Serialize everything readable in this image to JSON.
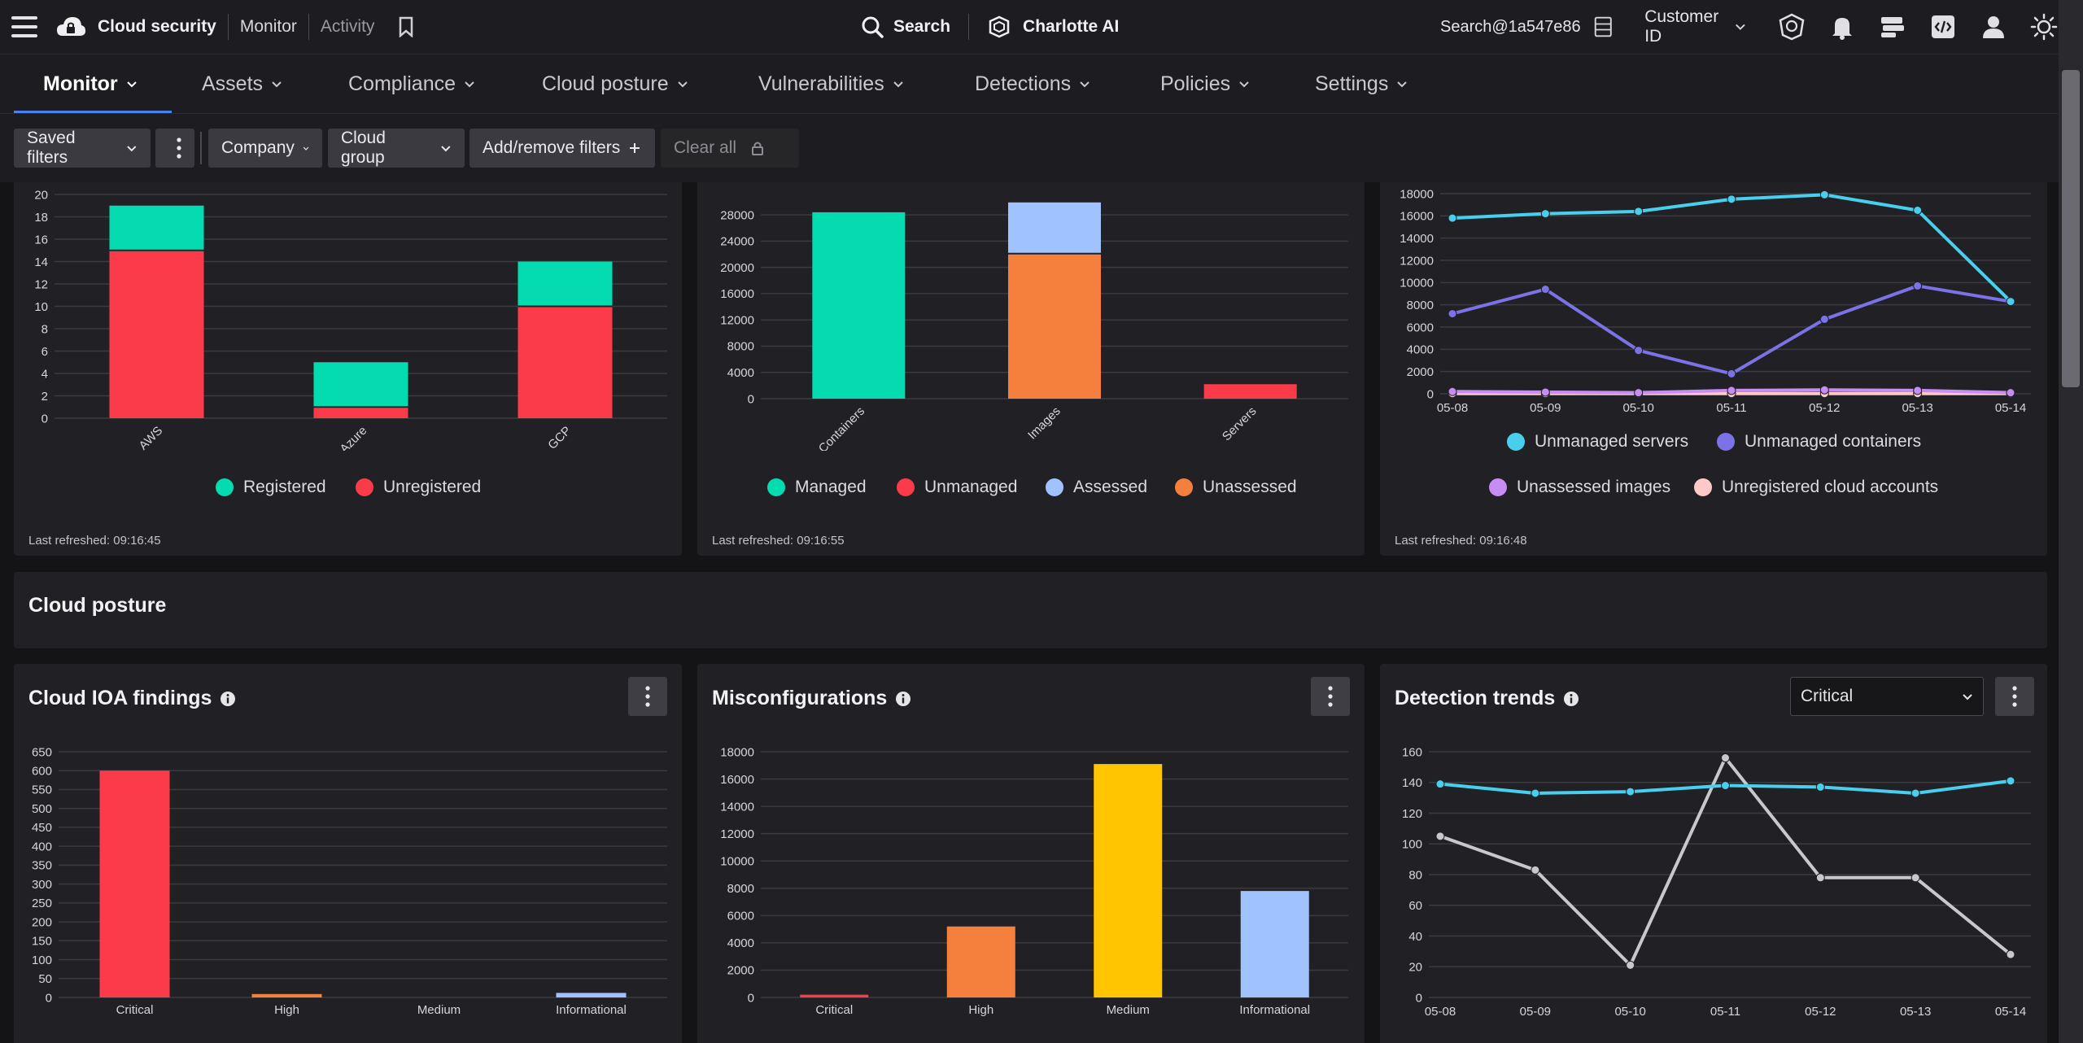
{
  "topbar": {
    "brand": "Cloud security",
    "crumb_monitor": "Monitor",
    "crumb_activity": "Activity",
    "search_label": "Search",
    "ai_label": "Charlotte AI",
    "user": "Search@1a547e86",
    "customer_id": "Customer ID"
  },
  "nav": {
    "items": [
      "Monitor",
      "Assets",
      "Compliance",
      "Cloud posture",
      "Vulnerabilities",
      "Detections",
      "Policies",
      "Settings"
    ],
    "active": "Monitor"
  },
  "filters": {
    "saved_filters": "Saved filters",
    "company": "Company",
    "cloud_group": "Cloud group",
    "add_remove": "Add/remove filters",
    "clear_all": "Clear all"
  },
  "section": {
    "cloud_posture": "Cloud posture"
  },
  "panels": {
    "accounts": {
      "refreshed": "Last refreshed: 09:16:45"
    },
    "assets": {
      "refreshed": "Last refreshed: 09:16:55"
    },
    "trend": {
      "refreshed": "Last refreshed: 09:16:48"
    },
    "ioa": {
      "title": "Cloud IOA findings"
    },
    "misconfig": {
      "title": "Misconfigurations"
    },
    "detection": {
      "title": "Detection trends",
      "filter_value": "Critical"
    }
  },
  "colors": {
    "teal": "#05dbb0",
    "red": "#fb3b4a",
    "blue": "#a0c2ff",
    "orange": "#f5803e",
    "yellow": "#ffc500",
    "cyan": "#49cfee",
    "purple": "#7c72e8",
    "violet": "#c88cf5",
    "pink": "#ffc9c9",
    "gray": "#c8c8cc"
  },
  "chart_data": [
    {
      "id": "accounts",
      "type": "bar",
      "stacked": true,
      "categories": [
        "AWS",
        "Azure",
        "GCP"
      ],
      "series": [
        {
          "name": "Unregistered",
          "color": "#fb3b4a",
          "values": [
            15,
            1,
            10
          ]
        },
        {
          "name": "Registered",
          "color": "#05dbb0",
          "values": [
            4,
            4,
            4
          ]
        }
      ],
      "yticks": [
        0,
        2,
        4,
        6,
        8,
        10,
        12,
        14,
        16,
        18,
        20
      ],
      "ylim": [
        0,
        20
      ]
    },
    {
      "id": "assets",
      "type": "bar",
      "stacked": true,
      "categories": [
        "Containers",
        "Images",
        "Servers"
      ],
      "series": [
        {
          "name": "Managed",
          "color": "#05dbb0",
          "values": [
            28400,
            0,
            0
          ]
        },
        {
          "name": "Unassessed",
          "color": "#f5803e",
          "values": [
            0,
            22100,
            0
          ]
        },
        {
          "name": "Assessed",
          "color": "#a0c2ff",
          "values": [
            0,
            7800,
            0
          ]
        },
        {
          "name": "Unmanaged",
          "color": "#fb3b4a",
          "values": [
            0,
            0,
            2200
          ]
        }
      ],
      "legend": [
        {
          "name": "Managed",
          "color": "#05dbb0"
        },
        {
          "name": "Unmanaged",
          "color": "#fb3b4a"
        },
        {
          "name": "Assessed",
          "color": "#a0c2ff"
        },
        {
          "name": "Unassessed",
          "color": "#f5803e"
        }
      ],
      "yticks": [
        0,
        4000,
        8000,
        12000,
        16000,
        20000,
        24000,
        28000
      ],
      "ylim": [
        0,
        30000
      ]
    },
    {
      "id": "trend",
      "type": "line",
      "x": [
        "05-08",
        "05-09",
        "05-10",
        "05-11",
        "05-12",
        "05-13",
        "05-14"
      ],
      "series": [
        {
          "name": "Unmanaged servers",
          "color": "#49cfee",
          "values": [
            15800,
            16200,
            16400,
            17500,
            17900,
            16500,
            8300
          ]
        },
        {
          "name": "Unmanaged containers",
          "color": "#7c72e8",
          "values": [
            7200,
            9400,
            3900,
            1800,
            6700,
            9700,
            8300
          ]
        },
        {
          "name": "Unassessed images",
          "color": "#c88cf5",
          "values": [
            200,
            150,
            100,
            300,
            350,
            300,
            100
          ]
        },
        {
          "name": "Unregistered cloud accounts",
          "color": "#ffc9c9",
          "values": [
            19,
            19,
            19,
            19,
            19,
            19,
            19
          ]
        }
      ],
      "yticks": [
        0,
        2000,
        4000,
        6000,
        8000,
        10000,
        12000,
        14000,
        16000,
        18000
      ],
      "ylim": [
        0,
        18000
      ]
    },
    {
      "id": "ioa",
      "type": "bar",
      "categories": [
        "Critical",
        "High",
        "Medium",
        "Informational"
      ],
      "values": [
        600,
        9,
        0,
        12
      ],
      "colors": [
        "#fb3b4a",
        "#f5803e",
        "#ffc500",
        "#a0c2ff"
      ],
      "yticks": [
        0,
        50,
        100,
        150,
        200,
        250,
        300,
        350,
        400,
        450,
        500,
        550,
        600,
        650
      ],
      "ylim": [
        0,
        650
      ]
    },
    {
      "id": "misconfig",
      "type": "bar",
      "categories": [
        "Critical",
        "High",
        "Medium",
        "Informational"
      ],
      "values": [
        200,
        5200,
        17100,
        7800
      ],
      "colors": [
        "#fb3b4a",
        "#f5803e",
        "#ffc500",
        "#a0c2ff"
      ],
      "yticks": [
        0,
        2000,
        4000,
        6000,
        8000,
        10000,
        12000,
        14000,
        16000,
        18000
      ],
      "ylim": [
        0,
        18000
      ]
    },
    {
      "id": "detection",
      "type": "line",
      "x": [
        "05-08",
        "05-09",
        "05-10",
        "05-11",
        "05-12",
        "05-13",
        "05-14"
      ],
      "series": [
        {
          "color": "#49cfee",
          "values": [
            139,
            133,
            134,
            138,
            137,
            133,
            141
          ]
        },
        {
          "color": "#c8c8cc",
          "values": [
            105,
            83,
            21,
            156,
            78,
            78,
            28
          ]
        }
      ],
      "yticks": [
        0,
        20,
        40,
        60,
        80,
        100,
        120,
        140,
        160
      ],
      "ylim": [
        0,
        160
      ]
    }
  ]
}
